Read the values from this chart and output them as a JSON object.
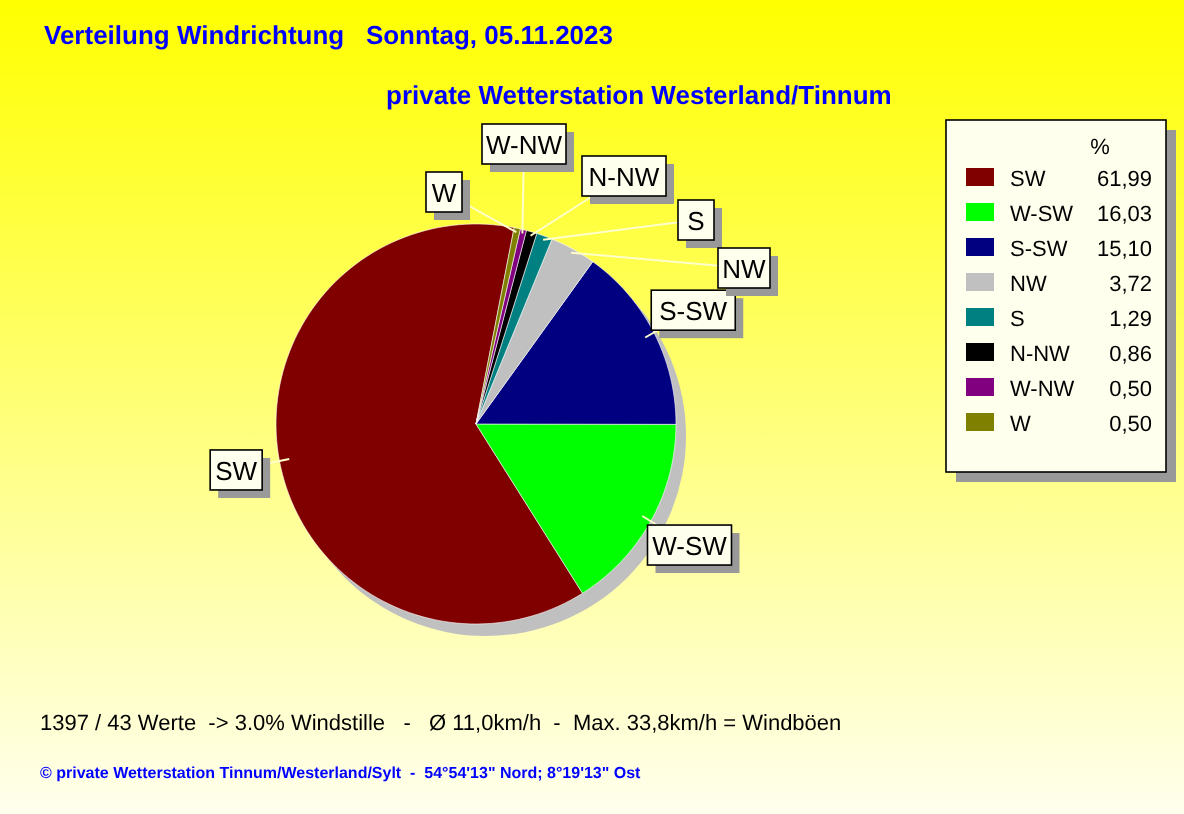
{
  "chart_data": {
    "type": "pie",
    "title": "Verteilung Windrichtung   Sonntag, 05.11.2023",
    "subtitle": "private Wetterstation Westerland/Tinnum",
    "legend_title": "%",
    "categories": [
      "SW",
      "W-SW",
      "S-SW",
      "NW",
      "S",
      "N-NW",
      "W-NW",
      "W"
    ],
    "values": [
      61.99,
      16.03,
      15.1,
      3.72,
      1.29,
      0.86,
      0.5,
      0.5
    ],
    "value_labels": [
      "61,99",
      "16,03",
      "15,10",
      "3,72",
      "1,29",
      "0,86",
      "0,50",
      "0,50"
    ],
    "colors": [
      "#800000",
      "#00ff00",
      "#000080",
      "#c0c0c0",
      "#008080",
      "#000000",
      "#800080",
      "#808000"
    ],
    "legend": "top right",
    "annotations": [
      "1397 / 43 Werte  -> 3.0% Windstille   -   Ø 11,0km/h  -  Max. 33,8km/h = Windböen",
      "© private Wetterstation Tinnum/Westerland/Sylt  -  54°54'13\" Nord; 8°19'13\" Ost"
    ]
  }
}
